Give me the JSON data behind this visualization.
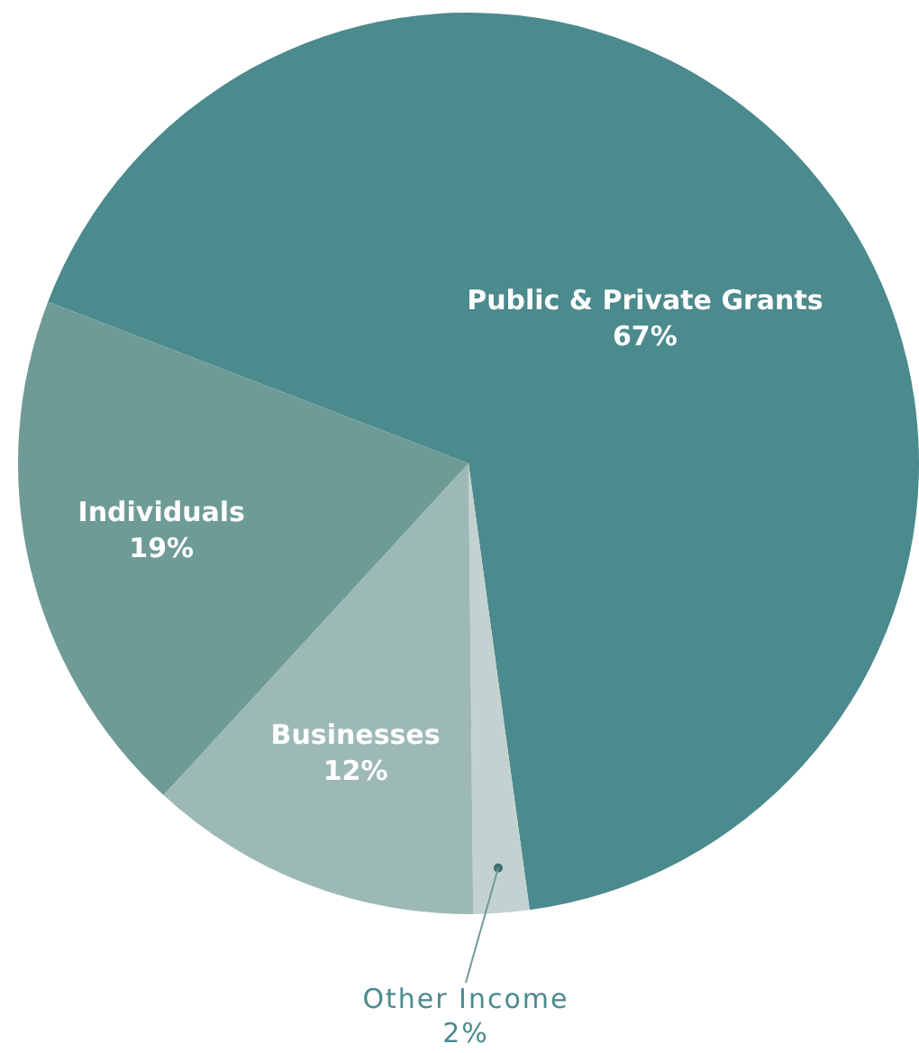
{
  "chart_data": {
    "type": "pie",
    "categories": [
      "Public & Private Grants",
      "Other Income",
      "Businesses",
      "Individuals"
    ],
    "values": [
      67,
      2,
      12,
      19
    ],
    "value_labels": [
      "67%",
      "2%",
      "12%",
      "19%"
    ],
    "colors": [
      "#4b8a8d",
      "#c3d2d0",
      "#9db9b6",
      "#6f9b97"
    ]
  }
}
